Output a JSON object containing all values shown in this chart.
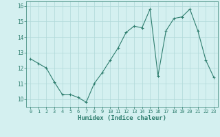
{
  "x": [
    0,
    1,
    2,
    3,
    4,
    5,
    6,
    7,
    8,
    9,
    10,
    11,
    12,
    13,
    14,
    15,
    16,
    17,
    18,
    19,
    20,
    21,
    22,
    23
  ],
  "y": [
    12.6,
    12.3,
    12.0,
    11.1,
    10.3,
    10.3,
    10.1,
    9.8,
    11.0,
    11.7,
    12.5,
    13.3,
    14.3,
    14.7,
    14.6,
    15.8,
    11.5,
    14.4,
    15.2,
    15.3,
    15.8,
    14.4,
    12.5,
    11.4
  ],
  "xlim": [
    -0.5,
    23.5
  ],
  "ylim": [
    9.5,
    16.3
  ],
  "yticks": [
    10,
    11,
    12,
    13,
    14,
    15,
    16
  ],
  "xticks": [
    0,
    1,
    2,
    3,
    4,
    5,
    6,
    7,
    8,
    9,
    10,
    11,
    12,
    13,
    14,
    15,
    16,
    17,
    18,
    19,
    20,
    21,
    22,
    23
  ],
  "xlabel": "Humidex (Indice chaleur)",
  "line_color": "#2e7d6e",
  "marker": "+",
  "bg_color": "#d4f0f0",
  "grid_color": "#b0d8d8",
  "tick_color": "#2e7d6e",
  "label_color": "#2e7d6e",
  "title": ""
}
